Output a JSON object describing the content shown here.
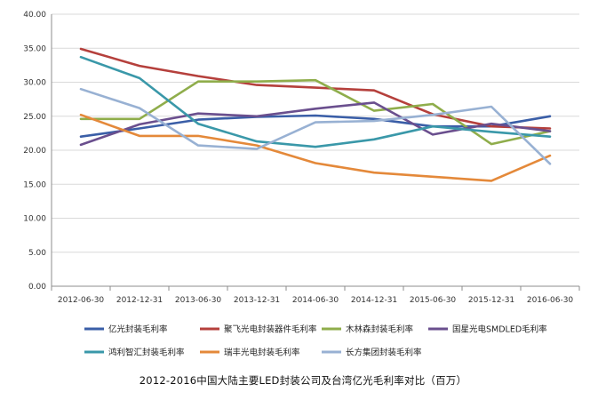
{
  "chart_data": {
    "type": "line",
    "title": "2012-2016中国大陆主要LED封装公司及台湾亿光毛利率对比（百万）",
    "xlabel": "",
    "ylabel": "",
    "categories": [
      "2012-06-30",
      "2012-12-31",
      "2013-06-30",
      "2013-12-31",
      "2014-06-30",
      "2014-12-31",
      "2015-06-30",
      "2015-12-31",
      "2016-06-30"
    ],
    "y_ticks": [
      "0.00",
      "5.00",
      "10.00",
      "15.00",
      "20.00",
      "25.00",
      "30.00",
      "35.00",
      "40.00"
    ],
    "ylim": [
      0,
      40
    ],
    "grid": "horizontal",
    "legend": "bottom",
    "series": [
      {
        "name": "亿光封装毛利率",
        "color": "#3a5ea7",
        "values": [
          22.0,
          23.2,
          24.5,
          24.9,
          25.1,
          24.6,
          23.5,
          23.5,
          25.0
        ]
      },
      {
        "name": "聚飞光电封装器件毛利率",
        "color": "#b5403c",
        "values": [
          34.9,
          32.4,
          30.9,
          29.6,
          29.2,
          28.8,
          25.3,
          23.5,
          23.2
        ]
      },
      {
        "name": "木林森封装毛利率",
        "color": "#8fad4b",
        "values": [
          24.6,
          24.6,
          30.1,
          30.1,
          30.3,
          25.8,
          26.8,
          20.9,
          22.8
        ]
      },
      {
        "name": "国星光电SMDLED毛利率",
        "color": "#6a4f8e",
        "values": [
          20.8,
          23.8,
          25.4,
          25.0,
          26.1,
          27.0,
          22.3,
          23.9,
          22.8
        ]
      },
      {
        "name": "鸿利智汇封装毛利率",
        "color": "#3a98a9",
        "values": [
          33.7,
          30.6,
          23.9,
          21.3,
          20.5,
          21.6,
          23.5,
          22.7,
          22.0
        ]
      },
      {
        "name": "瑞丰光电封装毛利率",
        "color": "#e4893a",
        "values": [
          25.2,
          22.1,
          22.1,
          20.7,
          18.1,
          16.7,
          16.1,
          15.5,
          19.2
        ]
      },
      {
        "name": "长方集团封装毛利率",
        "color": "#98b1d3",
        "values": [
          29.0,
          26.2,
          20.7,
          20.2,
          24.1,
          24.3,
          25.2,
          26.4,
          18.0
        ]
      }
    ]
  }
}
